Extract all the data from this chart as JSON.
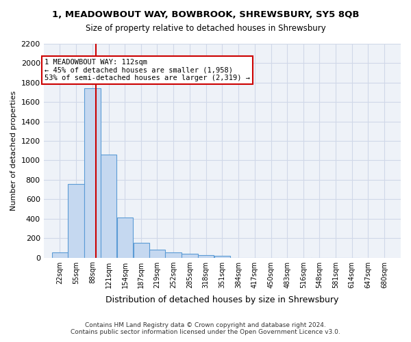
{
  "title": "1, MEADOWBOUT WAY, BOWBROOK, SHREWSBURY, SY5 8QB",
  "subtitle": "Size of property relative to detached houses in Shrewsbury",
  "xlabel": "Distribution of detached houses by size in Shrewsbury",
  "ylabel": "Number of detached properties",
  "footer_line1": "Contains HM Land Registry data © Crown copyright and database right 2024.",
  "footer_line2": "Contains public sector information licensed under the Open Government Licence v3.0.",
  "bar_color": "#c5d8f0",
  "bar_edge_color": "#5b9bd5",
  "bar_values": [
    55,
    760,
    1740,
    1060,
    415,
    155,
    80,
    50,
    40,
    28,
    20,
    0,
    0,
    0,
    0,
    0,
    0,
    0,
    0
  ],
  "bin_labels": [
    "22sqm",
    "55sqm",
    "88sqm",
    "121sqm",
    "154sqm",
    "187sqm",
    "219sqm",
    "252sqm",
    "285sqm",
    "318sqm",
    "351sqm",
    "384sqm",
    "417sqm",
    "450sqm",
    "483sqm",
    "516sqm",
    "548sqm",
    "581sqm",
    "614sqm",
    "647sqm",
    "680sqm"
  ],
  "num_bins": 19,
  "bin_edges": [
    22,
    55,
    88,
    121,
    154,
    187,
    219,
    252,
    285,
    318,
    351,
    384,
    417,
    450,
    483,
    516,
    548,
    581,
    614,
    647,
    680
  ],
  "ylim": [
    0,
    2200
  ],
  "yticks": [
    0,
    200,
    400,
    600,
    800,
    1000,
    1200,
    1400,
    1600,
    1800,
    2000,
    2200
  ],
  "property_size": 112,
  "vline_x": 112,
  "annotation_title": "1 MEADOWBOUT WAY: 112sqm",
  "annotation_line1": "← 45% of detached houses are smaller (1,958)",
  "annotation_line2": "53% of semi-detached houses are larger (2,319) →",
  "vline_color": "#cc0000",
  "annotation_box_color": "#ffcccc",
  "grid_color": "#d0d8e8",
  "bg_color": "#eef2f8"
}
